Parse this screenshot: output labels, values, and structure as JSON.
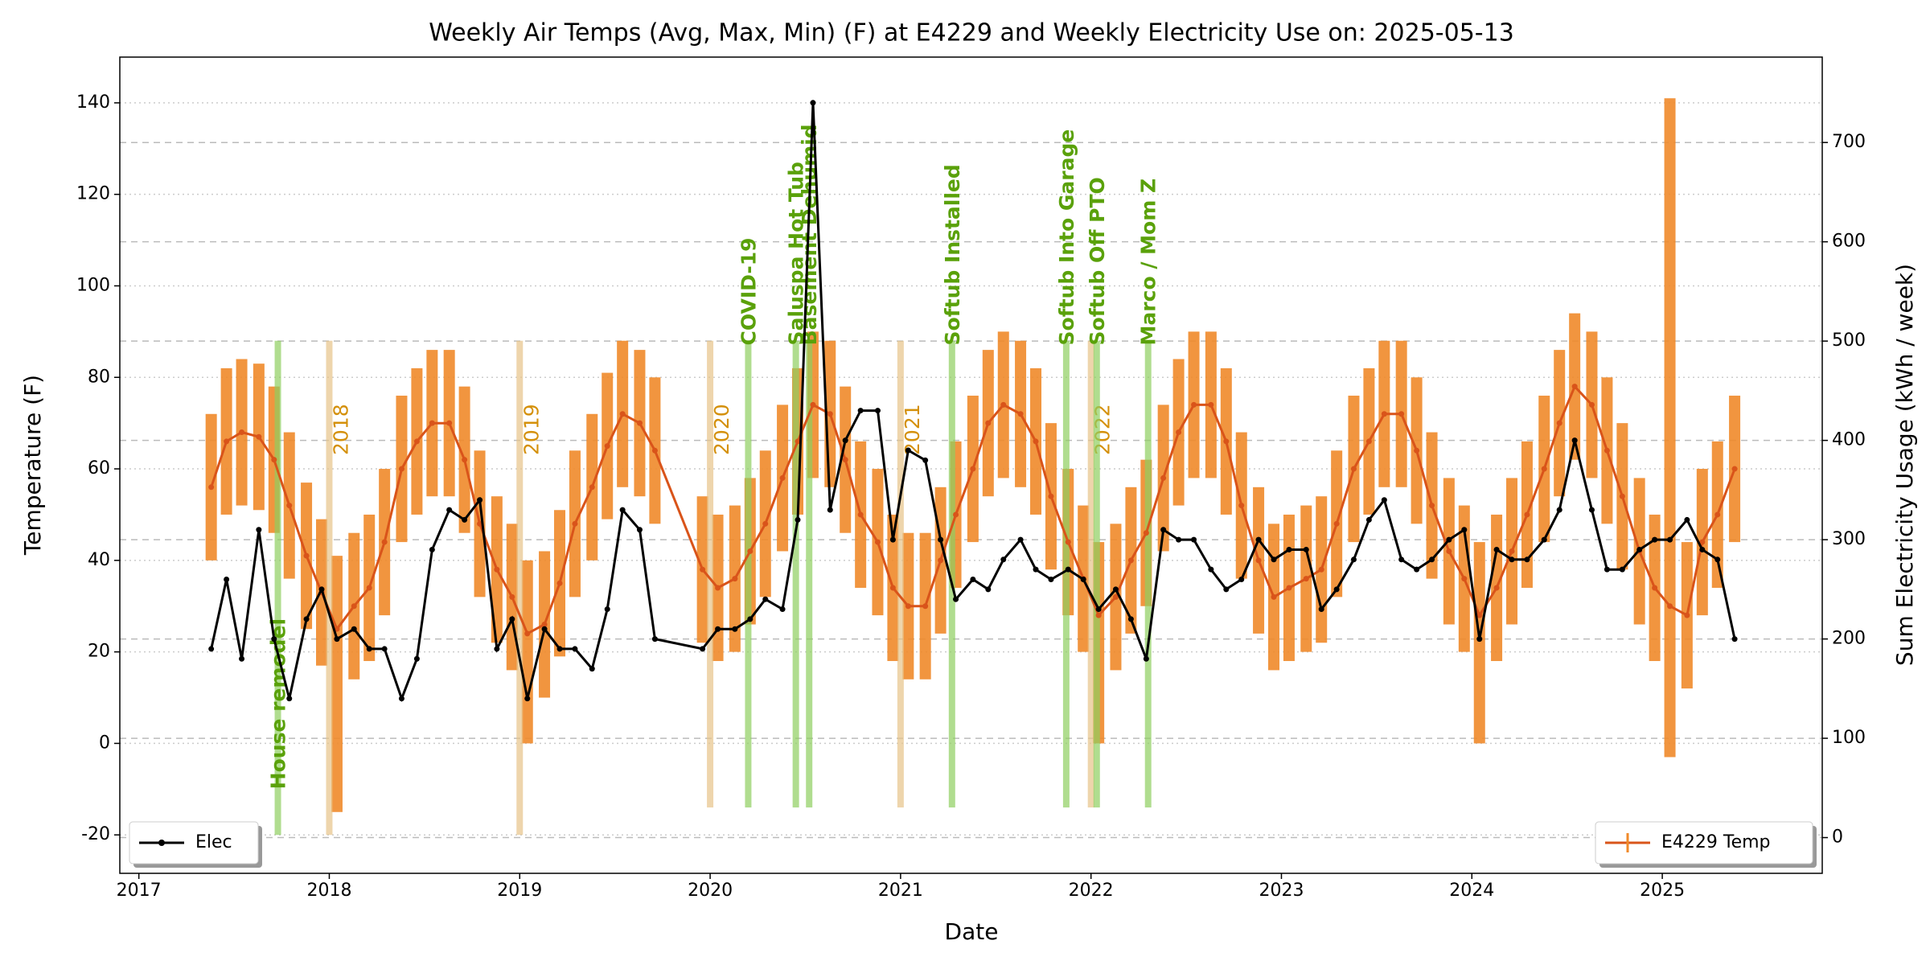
{
  "chart_data": {
    "type": "line",
    "title": "Weekly Air Temps (Avg, Max, Min) (F) at E4229 and Weekly Electricity Use on: 2025-05-13",
    "x_label": "Date",
    "y_label": "Temperature (F)",
    "y2_label": "Sum Electricity Usage (kWh / week)",
    "x": [
      2017.38,
      2017.46,
      2017.54,
      2017.63,
      2017.71,
      2017.79,
      2017.88,
      2017.96,
      2018.04,
      2018.13,
      2018.21,
      2018.29,
      2018.38,
      2018.46,
      2018.54,
      2018.63,
      2018.71,
      2018.79,
      2018.88,
      2018.96,
      2019.04,
      2019.13,
      2019.21,
      2019.29,
      2019.38,
      2019.46,
      2019.54,
      2019.63,
      2019.71,
      2019.96,
      2020.04,
      2020.13,
      2020.21,
      2020.29,
      2020.38,
      2020.46,
      2020.54,
      2020.63,
      2020.71,
      2020.79,
      2020.88,
      2020.96,
      2021.04,
      2021.13,
      2021.21,
      2021.29,
      2021.38,
      2021.46,
      2021.54,
      2021.63,
      2021.71,
      2021.79,
      2021.88,
      2021.96,
      2022.04,
      2022.13,
      2022.21,
      2022.29,
      2022.38,
      2022.46,
      2022.54,
      2022.63,
      2022.71,
      2022.79,
      2022.88,
      2022.96,
      2023.04,
      2023.13,
      2023.21,
      2023.29,
      2023.38,
      2023.46,
      2023.54,
      2023.63,
      2023.71,
      2023.79,
      2023.88,
      2023.96,
      2024.04,
      2024.13,
      2024.21,
      2024.29,
      2024.38,
      2024.46,
      2024.54,
      2024.63,
      2024.71,
      2024.79,
      2024.88,
      2024.96,
      2025.04,
      2025.13,
      2025.21,
      2025.29,
      2025.38
    ],
    "xlim": [
      2016.9,
      2025.84
    ],
    "xticks": [
      2017,
      2018,
      2019,
      2020,
      2021,
      2022,
      2023,
      2024,
      2025
    ],
    "ylim": [
      -28.4,
      150
    ],
    "yticks": [
      -20,
      0,
      20,
      40,
      60,
      80,
      100,
      120,
      140
    ],
    "y2lim": [
      -36,
      786
    ],
    "y2ticks": [
      0,
      100,
      200,
      300,
      400,
      500,
      600,
      700
    ],
    "grid": true,
    "series": [
      {
        "name": "E4229 Temp",
        "color": "#d9541a",
        "bar_color": "#f08a2a",
        "legend": "lower right",
        "values": [
          56,
          66,
          68,
          67,
          62,
          52,
          41,
          33,
          25,
          30,
          34,
          44,
          60,
          66,
          70,
          70,
          62,
          48,
          38,
          32,
          24,
          26,
          35,
          48,
          56,
          65,
          72,
          70,
          64,
          38,
          34,
          36,
          42,
          48,
          58,
          66,
          74,
          72,
          62,
          50,
          44,
          34,
          30,
          30,
          40,
          50,
          60,
          70,
          74,
          72,
          66,
          54,
          44,
          36,
          28,
          32,
          40,
          46,
          58,
          68,
          74,
          74,
          66,
          52,
          40,
          32,
          34,
          36,
          38,
          48,
          60,
          66,
          72,
          72,
          64,
          52,
          42,
          36,
          28,
          34,
          42,
          50,
          60,
          70,
          78,
          74,
          64,
          54,
          42,
          34,
          30,
          28,
          44,
          50,
          60
        ],
        "max": [
          72,
          82,
          84,
          83,
          78,
          68,
          57,
          49,
          41,
          46,
          50,
          60,
          76,
          82,
          86,
          86,
          78,
          64,
          54,
          48,
          40,
          42,
          51,
          64,
          72,
          81,
          88,
          86,
          80,
          54,
          50,
          52,
          58,
          64,
          74,
          82,
          90,
          88,
          78,
          66,
          60,
          50,
          46,
          46,
          56,
          66,
          76,
          86,
          90,
          88,
          82,
          70,
          60,
          52,
          44,
          48,
          56,
          62,
          74,
          84,
          90,
          90,
          82,
          68,
          56,
          48,
          50,
          52,
          54,
          64,
          76,
          82,
          88,
          88,
          80,
          68,
          58,
          52,
          44,
          50,
          58,
          66,
          76,
          86,
          94,
          90,
          80,
          70,
          58,
          50,
          141,
          44,
          60,
          66,
          76
        ],
        "min": [
          40,
          50,
          52,
          51,
          46,
          36,
          25,
          17,
          -15,
          14,
          18,
          28,
          44,
          50,
          54,
          54,
          46,
          32,
          22,
          16,
          0,
          10,
          19,
          32,
          40,
          49,
          56,
          54,
          48,
          22,
          18,
          20,
          26,
          32,
          42,
          50,
          58,
          56,
          46,
          34,
          28,
          18,
          14,
          14,
          24,
          34,
          44,
          54,
          58,
          56,
          50,
          38,
          28,
          20,
          0,
          16,
          24,
          30,
          42,
          52,
          58,
          58,
          50,
          36,
          24,
          16,
          18,
          20,
          22,
          32,
          44,
          50,
          56,
          56,
          48,
          36,
          26,
          20,
          0,
          18,
          26,
          34,
          44,
          54,
          62,
          58,
          48,
          38,
          26,
          18,
          -3,
          12,
          28,
          34,
          44
        ]
      },
      {
        "name": "Elec",
        "color": "#000000",
        "axis": "y2",
        "legend": "lower left",
        "values": [
          190,
          260,
          180,
          310,
          200,
          140,
          220,
          250,
          200,
          210,
          190,
          190,
          140,
          180,
          290,
          330,
          320,
          340,
          190,
          220,
          140,
          210,
          190,
          190,
          170,
          230,
          330,
          310,
          200,
          190,
          210,
          210,
          220,
          240,
          230,
          320,
          740,
          330,
          400,
          430,
          430,
          300,
          390,
          380,
          300,
          240,
          260,
          250,
          280,
          300,
          270,
          260,
          270,
          260,
          230,
          250,
          220,
          180,
          310,
          300,
          300,
          270,
          250,
          260,
          300,
          280,
          290,
          290,
          230,
          250,
          280,
          320,
          340,
          280,
          270,
          280,
          300,
          310,
          200,
          290,
          280,
          280,
          300,
          330,
          400,
          330,
          270,
          270,
          290,
          300,
          300,
          320,
          290,
          280,
          200
        ]
      }
    ],
    "annotations": [
      {
        "label": "House remodel",
        "x": 2017.73,
        "color": "#8fcf60",
        "span": [
          -20,
          88
        ]
      },
      {
        "label": "2018",
        "x": 2018.0,
        "color": "#e8c48a",
        "span": [
          -20,
          88
        ]
      },
      {
        "label": "2019",
        "x": 2019.0,
        "color": "#e8c48a",
        "span": [
          -20,
          88
        ]
      },
      {
        "label": "2020",
        "x": 2020.0,
        "color": "#e8c48a",
        "span": [
          -14,
          88
        ]
      },
      {
        "label": "COVID-19",
        "x": 2020.2,
        "color": "#8fcf60",
        "span": [
          -14,
          88
        ]
      },
      {
        "label": "Saluspa Hot Tub",
        "x": 2020.45,
        "color": "#8fcf60",
        "span": [
          -14,
          88
        ]
      },
      {
        "label": "Basement Dehumid",
        "x": 2020.52,
        "color": "#8fcf60",
        "span": [
          -14,
          88
        ]
      },
      {
        "label": "2021",
        "x": 2021.0,
        "color": "#e8c48a",
        "span": [
          -14,
          88
        ]
      },
      {
        "label": "Softub Installed",
        "x": 2021.27,
        "color": "#8fcf60",
        "span": [
          -14,
          88
        ]
      },
      {
        "label": "Softub Into Garage",
        "x": 2021.87,
        "color": "#8fcf60",
        "span": [
          -14,
          88
        ]
      },
      {
        "label": "2022",
        "x": 2022.0,
        "color": "#e8c48a",
        "span": [
          -14,
          88
        ]
      },
      {
        "label": "Softub Off PTO",
        "x": 2022.03,
        "color": "#8fcf60",
        "span": [
          -14,
          88
        ]
      },
      {
        "label": "Marco / Mom Z",
        "x": 2022.3,
        "color": "#8fcf60",
        "span": [
          -14,
          88
        ]
      }
    ]
  }
}
